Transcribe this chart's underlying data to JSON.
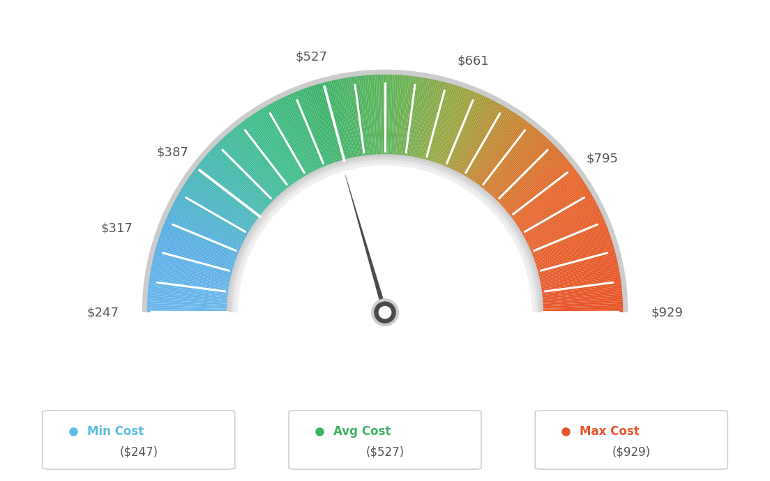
{
  "min_val": 247,
  "max_val": 929,
  "avg_val": 527,
  "tick_labels": [
    "$247",
    "$317",
    "$387",
    "$527",
    "$661",
    "$795",
    "$929"
  ],
  "tick_values": [
    247,
    317,
    387,
    527,
    661,
    795,
    929
  ],
  "legend": [
    {
      "label": "Min Cost",
      "value": "($247)",
      "color": "#5bbde4"
    },
    {
      "label": "Avg Cost",
      "value": "($527)",
      "color": "#3db368"
    },
    {
      "label": "Max Cost",
      "value": "($929)",
      "color": "#e8542a"
    }
  ],
  "color_stops": [
    [
      247,
      [
        0.42,
        0.72,
        0.93
      ]
    ],
    [
      317,
      [
        0.35,
        0.68,
        0.9
      ]
    ],
    [
      387,
      [
        0.28,
        0.72,
        0.72
      ]
    ],
    [
      457,
      [
        0.24,
        0.74,
        0.54
      ]
    ],
    [
      527,
      [
        0.24,
        0.7,
        0.41
      ]
    ],
    [
      594,
      [
        0.38,
        0.7,
        0.35
      ]
    ],
    [
      661,
      [
        0.6,
        0.65,
        0.25
      ]
    ],
    [
      728,
      [
        0.8,
        0.5,
        0.18
      ]
    ],
    [
      795,
      [
        0.9,
        0.4,
        0.17
      ]
    ],
    [
      929,
      [
        0.91,
        0.33,
        0.16
      ]
    ]
  ],
  "background_color": "#ffffff",
  "needle_color": "#4d4d4d",
  "outer_border_color": "#d8d8d8",
  "inner_ring_color": "#e0e0e0"
}
